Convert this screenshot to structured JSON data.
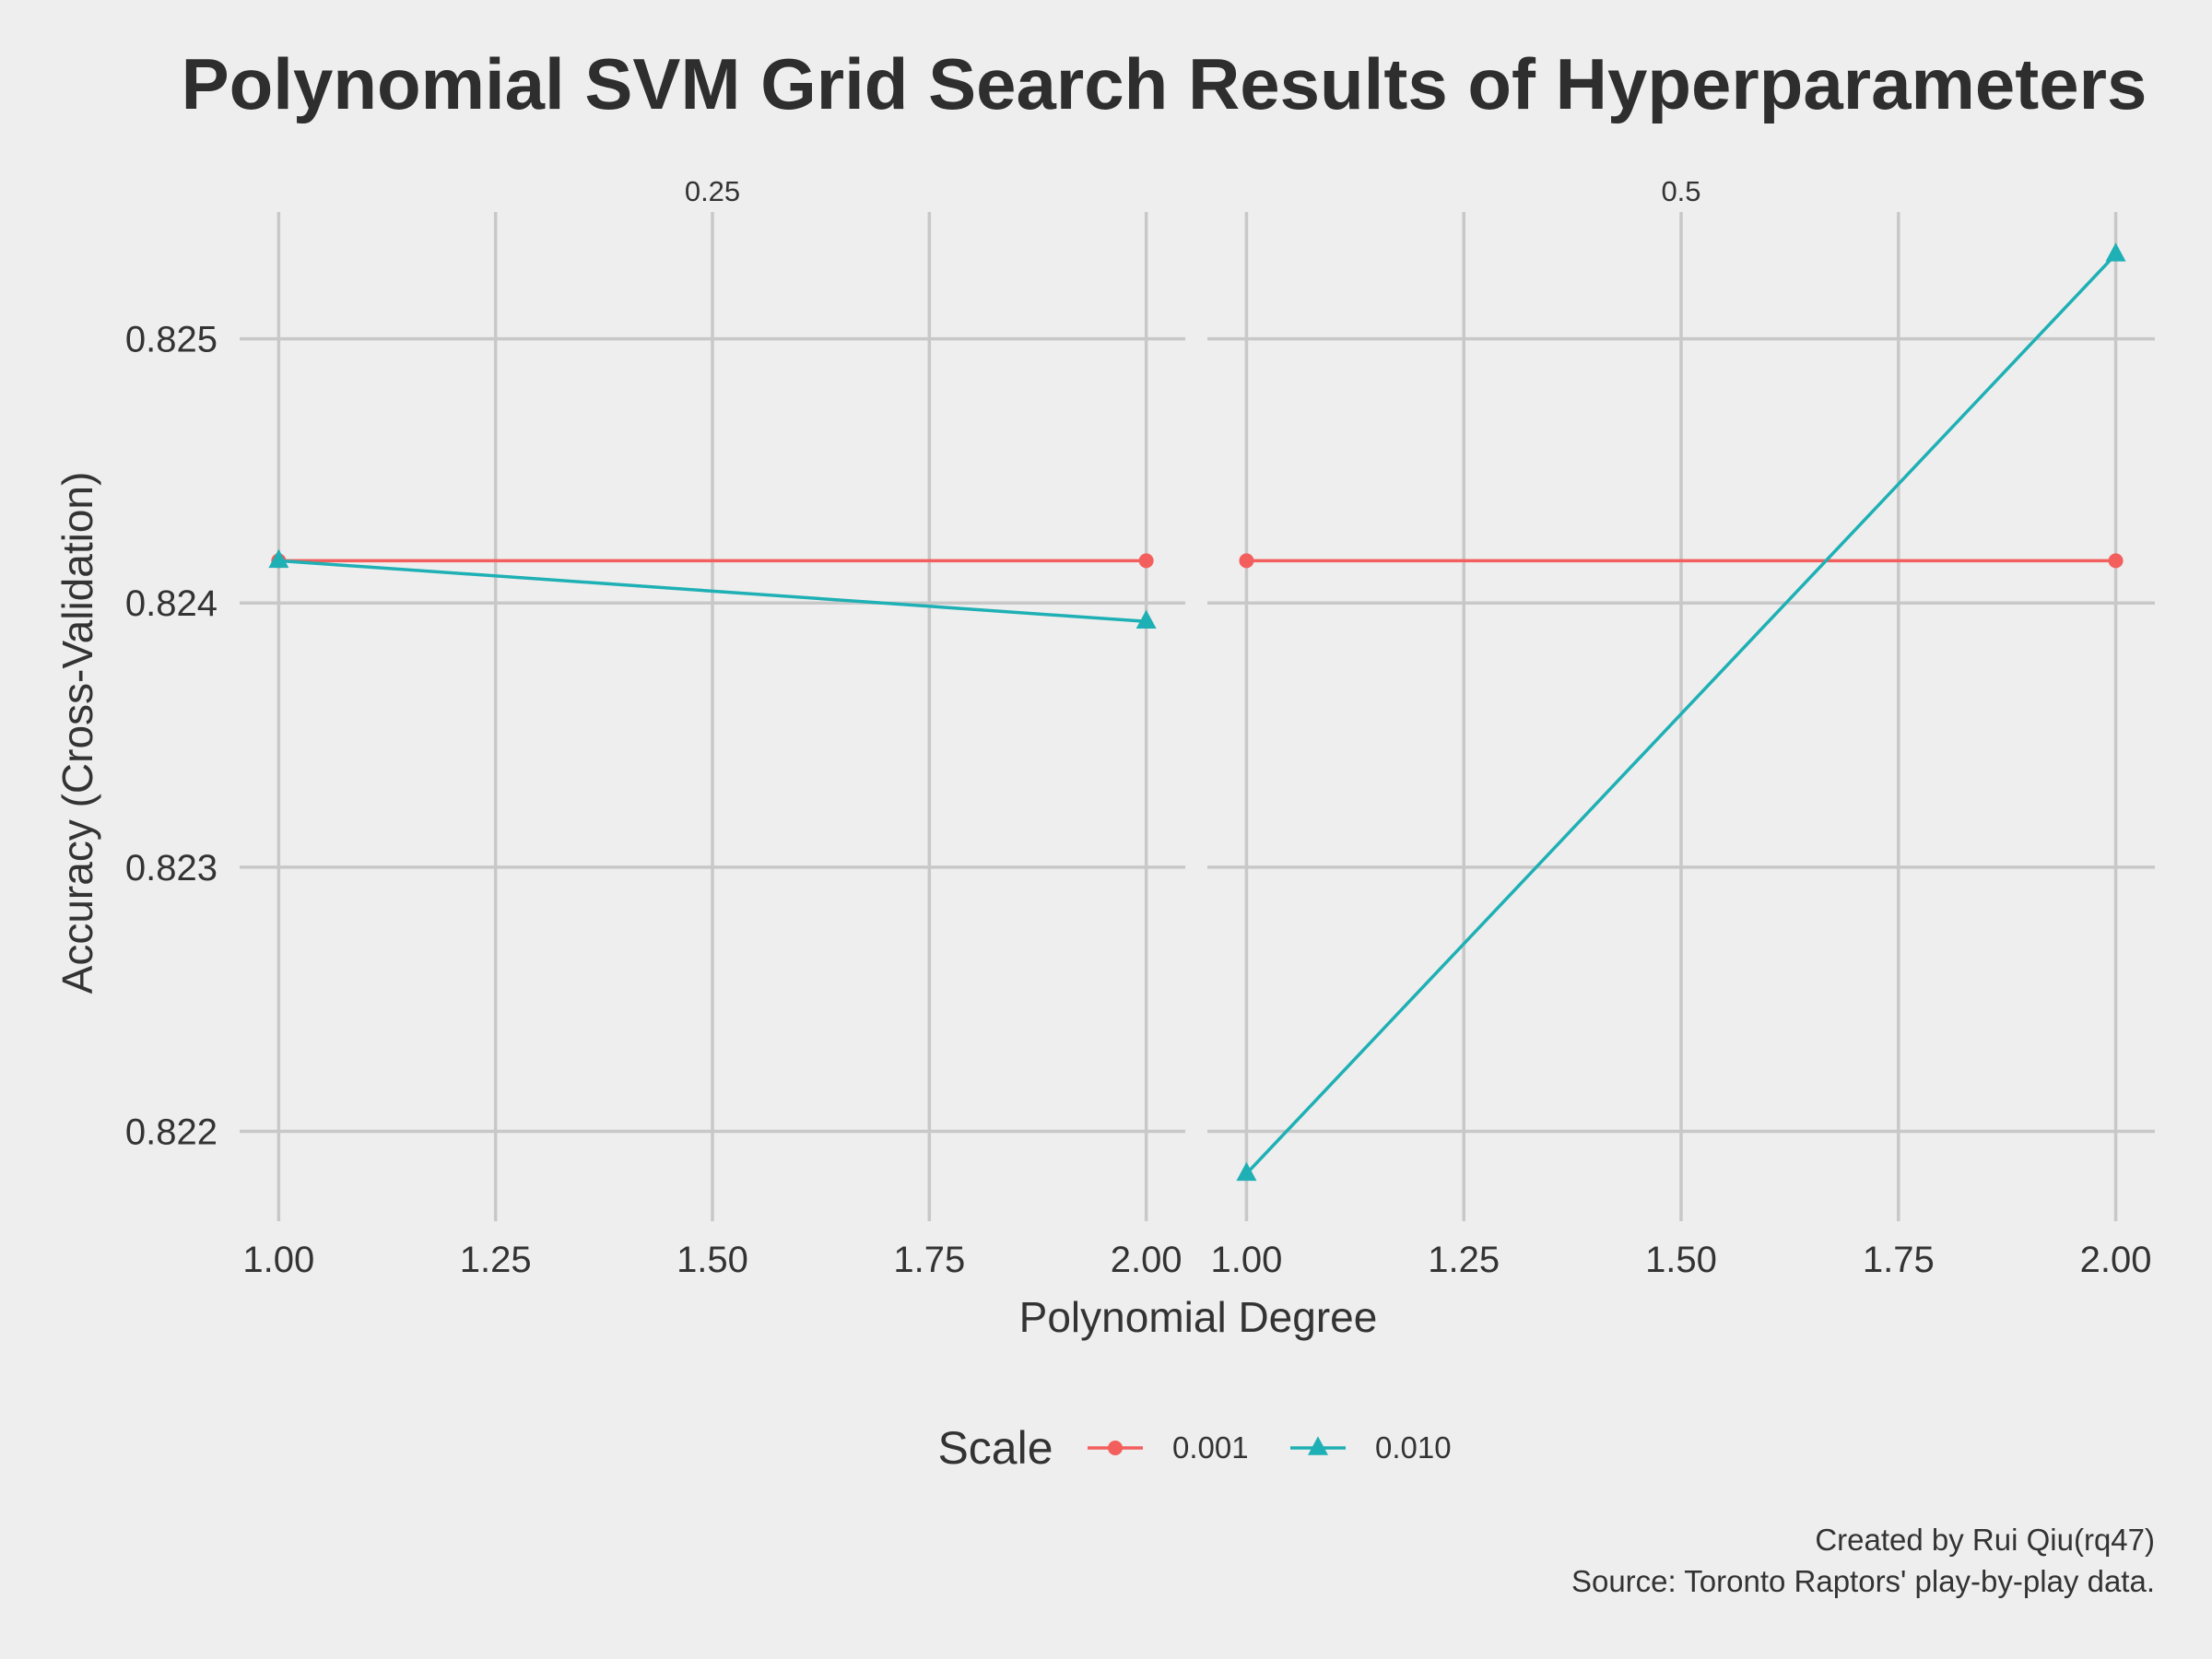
{
  "chart_data": {
    "type": "line",
    "title": "Polynomial SVM Grid Search Results of Hyperparameters",
    "xlabel": "Polynomial Degree",
    "ylabel": "Accuracy (Cross-Validation)",
    "x_ticks": [
      1.0,
      1.25,
      1.5,
      1.75,
      2.0
    ],
    "x_tick_labels": [
      "1.00",
      "1.25",
      "1.50",
      "1.75",
      "2.00"
    ],
    "y_ticks": [
      0.822,
      0.823,
      0.824,
      0.825
    ],
    "y_tick_labels": [
      "0.822",
      "0.823",
      "0.824",
      "0.825"
    ],
    "xlim": [
      0.955,
      2.045
    ],
    "ylim": [
      0.82166,
      0.82548
    ],
    "grid": true,
    "legend": {
      "title": "Scale",
      "position": "bottom",
      "entries": [
        {
          "label": "0.001",
          "color": "#f25f5c",
          "marker": "circle"
        },
        {
          "label": "0.010",
          "color": "#1eb0b4",
          "marker": "triangle"
        }
      ]
    },
    "panels": [
      {
        "label": "0.25",
        "series": [
          {
            "name": "0.001",
            "x": [
              1,
              2
            ],
            "y": [
              0.82416,
              0.82416
            ]
          },
          {
            "name": "0.010",
            "x": [
              1,
              2
            ],
            "y": [
              0.82416,
              0.82393
            ]
          }
        ]
      },
      {
        "label": "0.5",
        "series": [
          {
            "name": "0.001",
            "x": [
              1,
              2
            ],
            "y": [
              0.82416,
              0.82416
            ]
          },
          {
            "name": "0.010",
            "x": [
              1,
              2
            ],
            "y": [
              0.82184,
              0.82532
            ]
          }
        ]
      }
    ]
  },
  "caption": {
    "line1": "Created by Rui Qiu(rq47)",
    "line2": "Source: Toronto Raptors' play-by-play data."
  }
}
